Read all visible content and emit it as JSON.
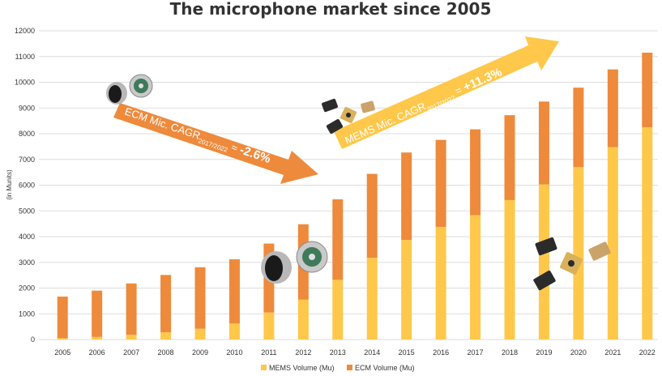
{
  "chart_data": {
    "type": "bar",
    "stacked": true,
    "title": "The microphone market since 2005",
    "ylabel": "(in Munits)",
    "xlabel": "",
    "ylim": [
      0,
      12000
    ],
    "yticks": [
      0,
      1000,
      2000,
      3000,
      4000,
      5000,
      6000,
      7000,
      8000,
      9000,
      10000,
      11000,
      12000
    ],
    "grid": true,
    "legend_position": "bottom-center",
    "categories": [
      "2005",
      "2006",
      "2007",
      "2008",
      "2009",
      "2010",
      "2011",
      "2012",
      "2013",
      "2014",
      "2015",
      "2016",
      "2017",
      "2018",
      "2019",
      "2020",
      "2021",
      "2022"
    ],
    "series": [
      {
        "name": "MEMS Volume (Mu)",
        "color": "#FFC84A",
        "values": [
          50,
          100,
          180,
          280,
          420,
          620,
          1050,
          1550,
          2320,
          3180,
          3870,
          4380,
          4830,
          5420,
          6030,
          6700,
          7480,
          8250
        ]
      },
      {
        "name": "ECM Volume (Mu)",
        "color": "#EE8A3C",
        "values": [
          1620,
          1800,
          2000,
          2230,
          2390,
          2500,
          2680,
          2930,
          3130,
          3260,
          3400,
          3380,
          3340,
          3300,
          3220,
          3090,
          3020,
          2900
        ]
      }
    ],
    "annotations": [
      {
        "id": "ecm",
        "prefix": "ECM Mic. CAGR",
        "subscript": "2017/2022",
        "suffix": " ≈ ",
        "value": "-2.6%",
        "color": "#EE8A3C"
      },
      {
        "id": "mems",
        "prefix": "MEMS Mic. CAGR",
        "subscript": "2017/2022",
        "suffix": " = ",
        "value": "+11.3%",
        "color": "#FFC84A"
      }
    ]
  },
  "icons": [
    "ecm-microphone-icon",
    "mems-microphone-icon"
  ]
}
